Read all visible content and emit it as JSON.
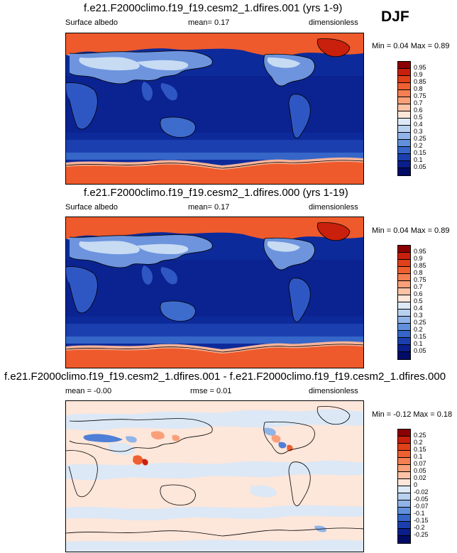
{
  "season": "DJF",
  "panels": [
    {
      "title": "f.e21.F2000climo.f19_f19.cesm2_1.dfires.001 (yrs 1-9)",
      "left_label": "Surface albedo",
      "center_label": "mean=  0.17",
      "right_label": "dimensionless",
      "minmax": "Min =  0.04 Max =  0.89",
      "colorbar_labels": [
        "0.95",
        "0.9",
        "0.85",
        "0.8",
        "0.75",
        "0.7",
        "0.6",
        "0.5",
        "0.4",
        "0.3",
        "0.25",
        "0.2",
        "0.15",
        "0.1",
        "0.05"
      ],
      "colorbar_colors": [
        "#8b0000",
        "#c8200c",
        "#e0401a",
        "#ee6032",
        "#f57f52",
        "#f9a07a",
        "#fbc2a6",
        "#fde6da",
        "#dde9f7",
        "#b9d1f0",
        "#90b4e8",
        "#6190dc",
        "#3566c8",
        "#1b3fae",
        "#0a1f8c",
        "#020c66"
      ]
    },
    {
      "title": "f.e21.F2000climo.f19_f19.cesm2_1.dfires.000 (yrs 1-19)",
      "left_label": "Surface albedo",
      "center_label": "mean=  0.17",
      "right_label": "dimensionless",
      "minmax": "Min =  0.04 Max =  0.89",
      "colorbar_labels": [
        "0.95",
        "0.9",
        "0.85",
        "0.8",
        "0.75",
        "0.7",
        "0.6",
        "0.5",
        "0.4",
        "0.3",
        "0.25",
        "0.2",
        "0.15",
        "0.1",
        "0.05"
      ],
      "colorbar_colors": [
        "#8b0000",
        "#c8200c",
        "#e0401a",
        "#ee6032",
        "#f57f52",
        "#f9a07a",
        "#fbc2a6",
        "#fde6da",
        "#dde9f7",
        "#b9d1f0",
        "#90b4e8",
        "#6190dc",
        "#3566c8",
        "#1b3fae",
        "#0a1f8c",
        "#020c66"
      ]
    },
    {
      "title": "f.e21.F2000climo.f19_f19.cesm2_1.dfires.001 - f.e21.F2000climo.f19_f19.cesm2_1.dfires.000",
      "left_label": "mean = -0.00",
      "center_label": "rmse =  0.01",
      "right_label": "dimensionless",
      "minmax": "Min = -0.12 Max =  0.18",
      "colorbar_labels": [
        "0.25",
        "0.2",
        "0.15",
        "0.1",
        "0.07",
        "0.05",
        "0.02",
        "0",
        "-0.02",
        "-0.05",
        "-0.07",
        "-0.1",
        "-0.15",
        "-0.2",
        "-0.25"
      ],
      "colorbar_colors": [
        "#8b0000",
        "#c8200c",
        "#e0401a",
        "#ee6032",
        "#f57f52",
        "#f9a07a",
        "#fbc2a6",
        "#fde6da",
        "#dde9f7",
        "#b9d1f0",
        "#90b4e8",
        "#6190dc",
        "#3566c8",
        "#1b3fae",
        "#0a1f8c",
        "#020c66"
      ]
    }
  ],
  "colors": {
    "ocean": "#0d2a9a",
    "ocean_mid": "#1c3faf",
    "ice": "#ee5a2c",
    "ice_edge": "#f8b49a",
    "land_dark": "#2f57c4",
    "land_mid": "#6d94dd",
    "land_light": "#c7dbf3",
    "diff_bg": "#fde6da",
    "diff_pale_blue": "#dce8f6",
    "diff_red": "#ee6032",
    "diff_blue": "#4f7fd6"
  }
}
